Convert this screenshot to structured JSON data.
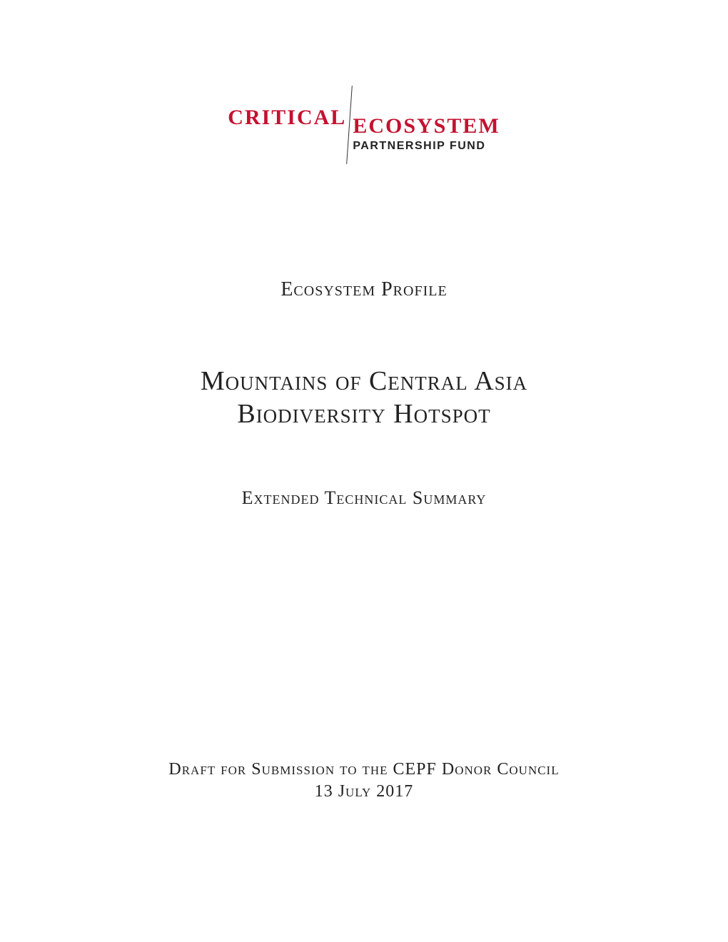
{
  "logo": {
    "word_left": "CRITICAL",
    "word_right_top": "ECOSYSTEM",
    "word_right_bottom": "PARTNERSHIP FUND",
    "brand_color": "#c41230",
    "text_color": "#222222"
  },
  "document": {
    "subtitle_top": "Ecosystem Profile",
    "title_line_1": "Mountains of Central Asia",
    "title_line_2": "Biodiversity Hotspot",
    "subtitle_bottom": "Extended Technical Summary",
    "footer_line_1": "Draft for Submission to the CEPF Donor Council",
    "footer_line_2": "13 July 2017"
  },
  "colors": {
    "background": "#ffffff",
    "text": "#222222",
    "brand_red": "#c41230"
  }
}
